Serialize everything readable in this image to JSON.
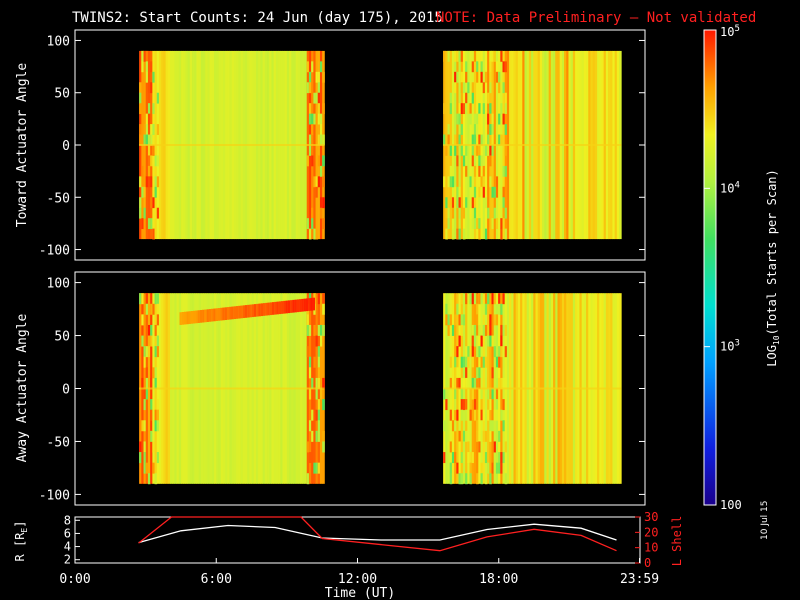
{
  "header": {
    "title": "TWINS2: Start Counts: 24 Jun (day 175), 2015",
    "note": "NOTE: Data Preliminary — Not validated"
  },
  "side_date": "10 Jul 15",
  "colors": {
    "background": "#000000",
    "axis": "#ffffff",
    "note": "#ff2020",
    "lshell": "#ff2020",
    "r_line": "#ffffff"
  },
  "chart_data": [
    {
      "type": "heatmap",
      "name": "toward",
      "ylabel": "Toward Actuator Angle",
      "ylim": [
        -110,
        110
      ],
      "yticks": [
        "100",
        "50",
        "0",
        "-50",
        "-100"
      ],
      "ytick_values": [
        100,
        50,
        0,
        -50,
        -100
      ],
      "xlim": [
        0,
        24
      ],
      "data_y_range": [
        -90,
        90
      ],
      "data_intervals_hours": [
        [
          2.7,
          10.5
        ],
        [
          15.5,
          23.0
        ]
      ],
      "dominant_level": "log10 ~4.2 (green-yellow)",
      "edge_level": "log10 ~4.7 (orange-red)"
    },
    {
      "type": "heatmap",
      "name": "away",
      "ylabel": "Away Actuator Angle",
      "ylim": [
        -110,
        110
      ],
      "yticks": [
        "100",
        "50",
        "0",
        "-50",
        "-100"
      ],
      "ytick_values": [
        100,
        50,
        0,
        -50,
        -100
      ],
      "xlim": [
        0,
        24
      ],
      "data_y_range": [
        -90,
        90
      ],
      "data_intervals_hours": [
        [
          2.7,
          10.5
        ],
        [
          15.5,
          23.0
        ]
      ],
      "feature": "enhanced band near +75 deg between ~4.5 and ~10 UT"
    },
    {
      "type": "line",
      "name": "orbit",
      "xlabel": "Time (UT)",
      "xticks": [
        "0:00",
        "6:00",
        "12:00",
        "18:00",
        "23:59"
      ],
      "xtick_values": [
        0,
        6,
        12,
        18,
        23.98
      ],
      "ylabel_left": "R [R",
      "ylabel_left_sub": "E",
      "ylabel_right": "L Shell",
      "yticks_left": [
        "8",
        "6",
        "4",
        "2"
      ],
      "ytick_values_left": [
        8,
        6,
        4,
        2
      ],
      "ylim_left": [
        1.5,
        8.5
      ],
      "yticks_right": [
        "30",
        "20",
        "10",
        "0"
      ],
      "ytick_values_right": [
        30,
        20,
        10,
        0
      ],
      "ylim_right": [
        0,
        30
      ],
      "series": [
        {
          "axis": "left",
          "x": [
            2.7,
            4.5,
            6.5,
            8.5,
            10.5,
            13.0,
            15.5,
            17.5,
            19.5,
            21.5,
            23.0
          ],
          "values": [
            4.6,
            6.4,
            7.2,
            6.9,
            5.3,
            5.0,
            5.0,
            6.6,
            7.4,
            6.8,
            5.0
          ]
        },
        {
          "axis": "right",
          "x": [
            2.7,
            4.1,
            9.6,
            10.5,
            15.5,
            17.5,
            19.5,
            21.5,
            23.0
          ],
          "values": [
            13,
            30,
            30,
            16,
            8,
            17,
            22,
            18,
            8
          ]
        }
      ]
    }
  ],
  "colorbar": {
    "label_prefix": "LOG",
    "label_sub": "10",
    "label_suffix": "(Total Starts per Scan)",
    "ticks": [
      {
        "base": "10",
        "exp": "5",
        "value": 5
      },
      {
        "base": "10",
        "exp": "4",
        "value": 4
      },
      {
        "base": "10",
        "exp": "3",
        "value": 3
      },
      {
        "base": "100",
        "exp": "",
        "value": 2
      }
    ],
    "range": [
      2,
      5
    ]
  }
}
